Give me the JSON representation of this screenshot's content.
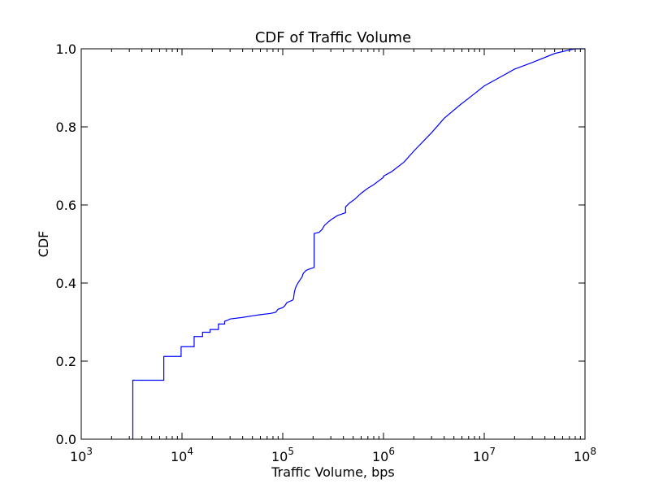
{
  "chart_data": {
    "type": "line",
    "title": "CDF of Traffic Volume",
    "xlabel": "Traffic Volume, bps",
    "ylabel": "CDF",
    "x_scale": "log",
    "xlim": [
      1000,
      100000000
    ],
    "ylim": [
      0.0,
      1.0
    ],
    "grid": false,
    "line_color": "#0000ff",
    "x_ticks": [
      {
        "value": 1000,
        "base": "10",
        "exp": "3"
      },
      {
        "value": 10000,
        "base": "10",
        "exp": "4"
      },
      {
        "value": 100000,
        "base": "10",
        "exp": "5"
      },
      {
        "value": 1000000,
        "base": "10",
        "exp": "6"
      },
      {
        "value": 10000000,
        "base": "10",
        "exp": "7"
      },
      {
        "value": 100000000,
        "base": "10",
        "exp": "8"
      }
    ],
    "y_ticks": [
      {
        "value": 0.0,
        "label": "0.0"
      },
      {
        "value": 0.2,
        "label": "0.2"
      },
      {
        "value": 0.4,
        "label": "0.4"
      },
      {
        "value": 0.6,
        "label": "0.6"
      },
      {
        "value": 0.8,
        "label": "0.8"
      },
      {
        "value": 1.0,
        "label": "1.0"
      }
    ],
    "series": [
      {
        "x": [
          3250,
          3250,
          6600,
          6600,
          9800,
          9800,
          13200,
          13200,
          16000,
          16000,
          19000,
          19000,
          23000,
          23000,
          26500,
          26500,
          28500,
          30000,
          40000,
          50000,
          60000,
          75000,
          85000,
          90000,
          100000,
          105000,
          110000,
          125000,
          128000,
          130000,
          133000,
          135000,
          140000,
          150000,
          155000,
          160000,
          170000,
          180000,
          205000,
          205000,
          230000,
          245000,
          260000,
          300000,
          350000,
          420000,
          420000,
          460000,
          520000,
          600000,
          700000,
          800000,
          1000000,
          1000000,
          1200000,
          1600000,
          2000000,
          3000000,
          4000000,
          5800000,
          8000000,
          10000000,
          15000000,
          20000000,
          30000000,
          50000000,
          70000000,
          80000000,
          100000000
        ],
        "y": [
          0.0,
          0.151,
          0.151,
          0.212,
          0.212,
          0.237,
          0.237,
          0.263,
          0.263,
          0.274,
          0.274,
          0.281,
          0.281,
          0.295,
          0.295,
          0.302,
          0.305,
          0.308,
          0.312,
          0.316,
          0.319,
          0.322,
          0.325,
          0.333,
          0.337,
          0.342,
          0.35,
          0.356,
          0.36,
          0.375,
          0.385,
          0.39,
          0.398,
          0.41,
          0.415,
          0.425,
          0.432,
          0.435,
          0.44,
          0.527,
          0.53,
          0.537,
          0.548,
          0.562,
          0.573,
          0.58,
          0.595,
          0.605,
          0.615,
          0.63,
          0.643,
          0.652,
          0.671,
          0.674,
          0.685,
          0.71,
          0.738,
          0.785,
          0.822,
          0.857,
          0.885,
          0.905,
          0.93,
          0.948,
          0.965,
          0.988,
          0.997,
          1.0,
          1.0
        ]
      }
    ]
  }
}
